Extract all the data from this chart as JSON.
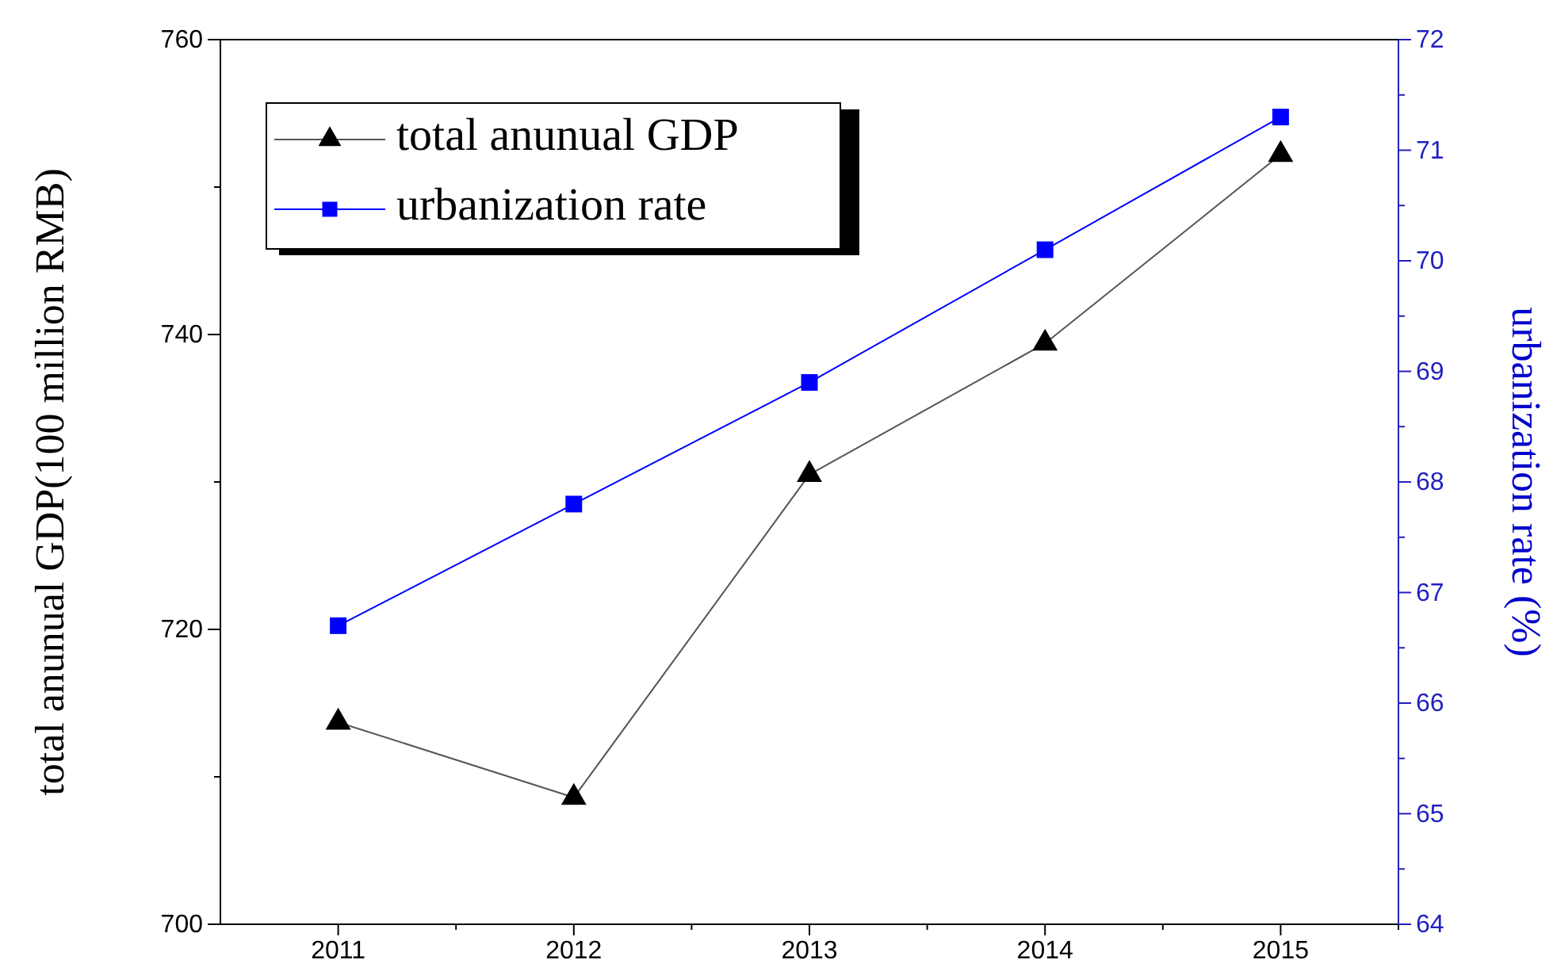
{
  "chart_data": {
    "type": "line",
    "x": [
      2011,
      2012,
      2013,
      2014,
      2015
    ],
    "xlim": [
      2010.5,
      2015.5
    ],
    "xticks": [
      2011,
      {
        "value": 2011.5,
        "label": null
      },
      2012,
      {
        "value": 2012.5,
        "label": null
      },
      2013,
      {
        "value": 2013.5,
        "label": null
      },
      2014,
      {
        "value": 2014.5,
        "label": null
      },
      2015,
      {
        "value": 2015.5,
        "label": null
      }
    ],
    "ylim": [
      700,
      760
    ],
    "yticks": [
      700,
      {
        "value": 710,
        "label": null
      },
      720,
      {
        "value": 730,
        "label": null
      },
      740,
      {
        "value": 750,
        "label": null
      },
      760
    ],
    "y2lim": [
      64,
      72
    ],
    "y2ticks": [
      64,
      {
        "value": 64.5,
        "label": null
      },
      65,
      {
        "value": 65.5,
        "label": null
      },
      66,
      {
        "value": 66.5,
        "label": null
      },
      67,
      {
        "value": 67.5,
        "label": null
      },
      68,
      {
        "value": 68.5,
        "label": null
      },
      69,
      {
        "value": 69.5,
        "label": null
      },
      70,
      {
        "value": 70.5,
        "label": null
      },
      71,
      {
        "value": 71.5,
        "label": null
      },
      72
    ],
    "ylabel": "total anunual GDP(100 million RMB)",
    "y2label": "urbanization rate (%)",
    "grid": false,
    "legend": "top left",
    "line_style": "solid",
    "series": [
      {
        "name": "total anunual GDP",
        "color": "#000000",
        "marker": "triangle",
        "values": [
          713.7,
          708.6,
          730.5,
          739.4,
          752.2
        ]
      },
      {
        "name": "urbanization rate",
        "color": "#0000ff",
        "marker": "square",
        "axis": "y2",
        "values": [
          66.7,
          67.8,
          68.9,
          70.1,
          71.3
        ]
      }
    ]
  }
}
